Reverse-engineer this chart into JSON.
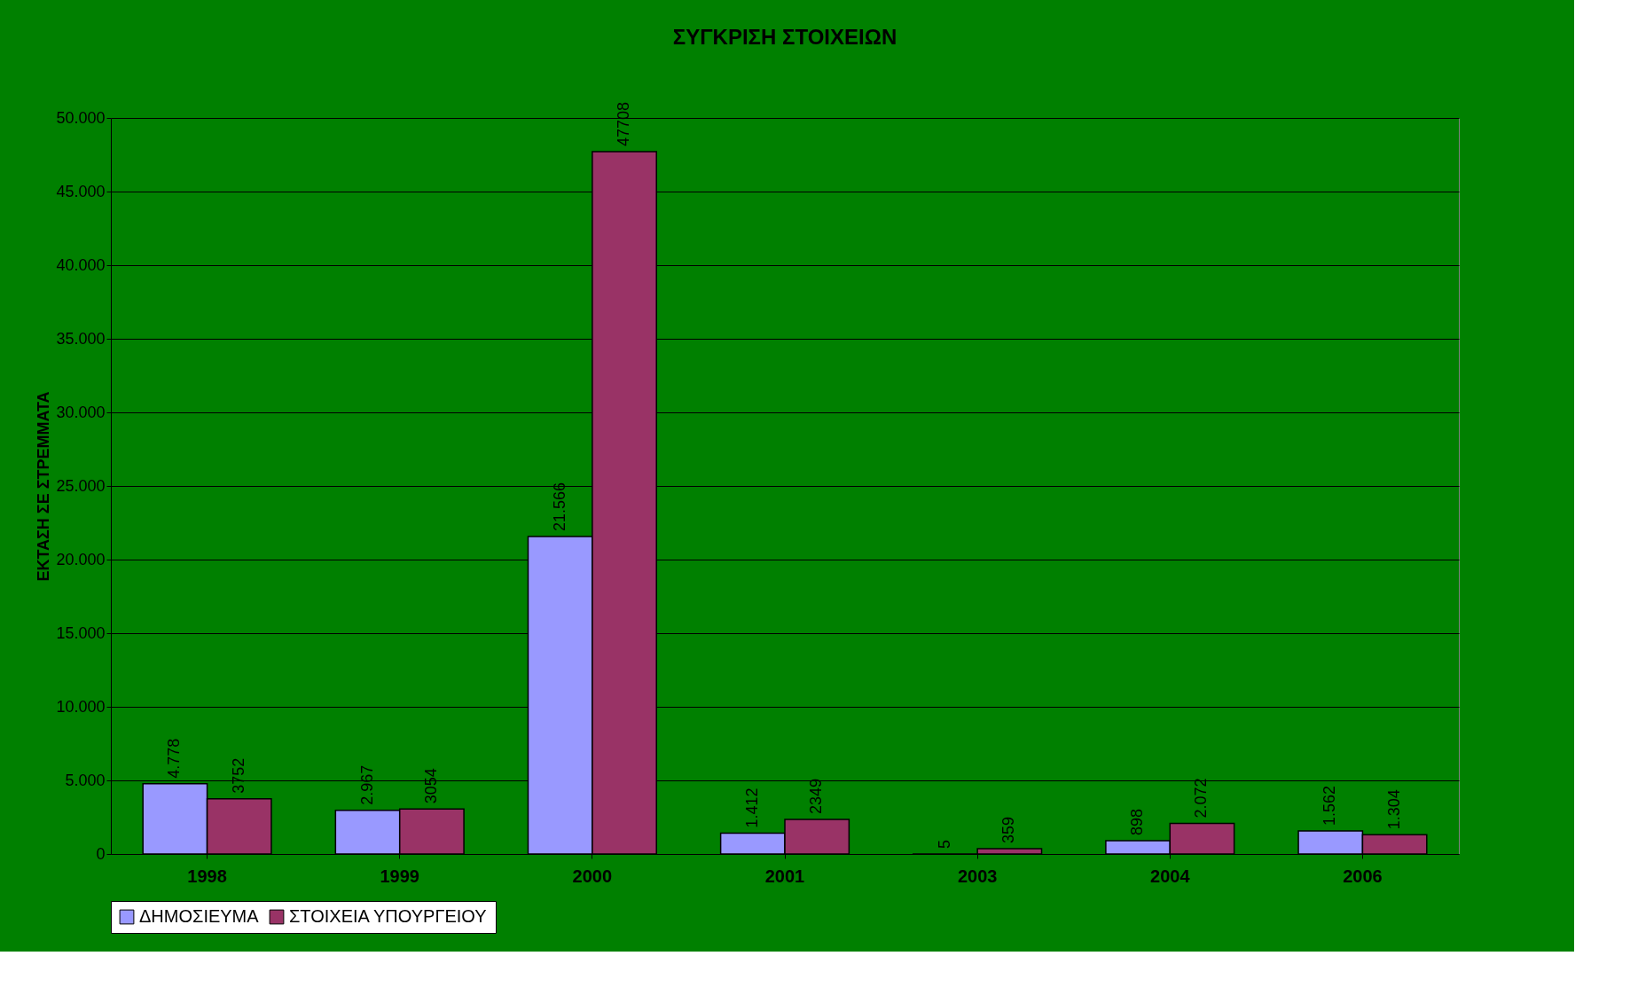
{
  "chart_data": {
    "type": "bar",
    "title": "ΣΥΓΚΡΙΣΗ ΣΤΟΙΧΕΙΩΝ",
    "ylabel": "ΕΚΤΑΣΗ ΣΕ ΣΤΡΕΜΜΑΤΑ",
    "categories": [
      "1998",
      "1999",
      "2000",
      "2001",
      "2003",
      "2004",
      "2006"
    ],
    "series": [
      {
        "name": "ΔΗΜΟΣΙΕΥΜΑ",
        "color": "#9999ff",
        "values": [
          4778,
          2967,
          21566,
          1412,
          5,
          898,
          1562
        ],
        "value_labels": [
          "4.778",
          "2.967",
          "21.566",
          "1.412",
          "5",
          "898",
          "1.562"
        ]
      },
      {
        "name": "ΣΤΟΙΧΕΙΑ ΥΠΟΥΡΓΕΙΟΥ",
        "color": "#993366",
        "values": [
          3752,
          3054,
          47708,
          2349,
          359,
          2072,
          1304
        ],
        "value_labels": [
          "3752",
          "3054",
          "47708",
          "2349",
          "359",
          "2.072",
          "1.304"
        ]
      }
    ],
    "ylim": [
      0,
      50000
    ],
    "yticks": [
      0,
      {
        "value": 5000,
        "label": "5.000"
      },
      {
        "value": 10000,
        "label": "10.000"
      },
      {
        "value": 15000,
        "label": "15.000"
      },
      {
        "value": 20000,
        "label": "20.000"
      },
      {
        "value": 25000,
        "label": "25.000"
      },
      {
        "value": 30000,
        "label": "30.000"
      },
      {
        "value": 35000,
        "label": "35.000"
      },
      {
        "value": 40000,
        "label": "40.000"
      },
      {
        "value": 45000,
        "label": "45.000"
      },
      {
        "value": 50000,
        "label": "50.000"
      }
    ],
    "grid": "y",
    "legend": "bottom"
  }
}
